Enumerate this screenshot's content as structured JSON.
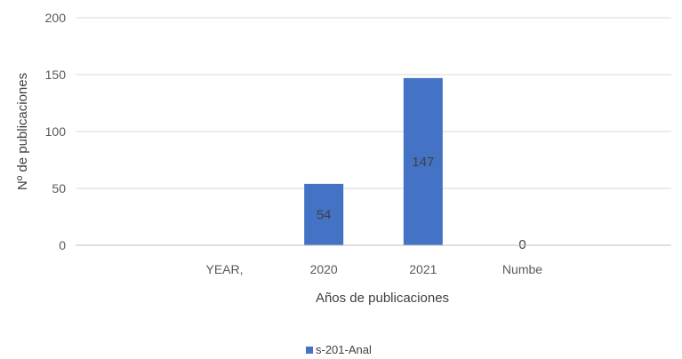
{
  "chart_data": {
    "type": "bar",
    "categories": [
      "",
      "YEAR,",
      "2020",
      "2021",
      "Numbe",
      ""
    ],
    "series": [
      {
        "name": "s-201-Anal",
        "values": [
          null,
          null,
          54,
          147,
          0,
          null
        ],
        "color": "#4472C4"
      }
    ],
    "data_labels": [
      "",
      "",
      "54",
      "147",
      "0",
      ""
    ],
    "y_ticks": [
      "0",
      "50",
      "100",
      "150",
      "200"
    ],
    "ylim": [
      0,
      200
    ],
    "xlabel": "Años de publicaciones",
    "ylabel": "Nº de publicaciones",
    "grid": true,
    "legend_position": "bottom"
  }
}
